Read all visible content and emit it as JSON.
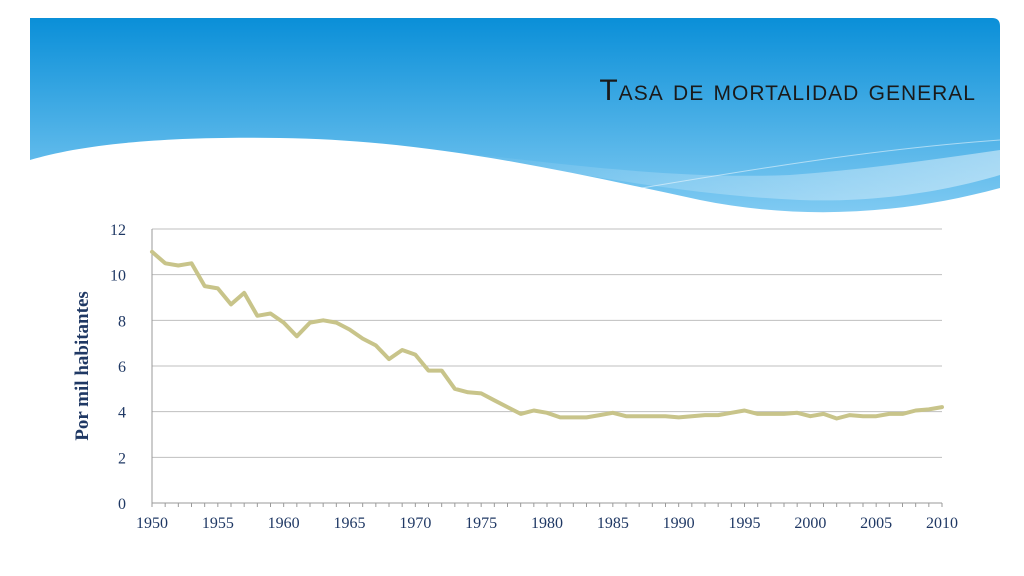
{
  "slide": {
    "title": "Tasa de mortalidad general"
  },
  "colors": {
    "banner_top": "#0a8fd8",
    "banner_bottom": "#7fcaf2",
    "line": "#c8c48a",
    "axis_text": "#1f3864",
    "grid": "#bfbfbf"
  },
  "chart_data": {
    "type": "line",
    "title": "",
    "xlabel": "",
    "ylabel": "Por mil habitantes",
    "xlim": [
      1950,
      2010
    ],
    "ylim": [
      0,
      12
    ],
    "grid": true,
    "legend": "none",
    "x_ticks": [
      "1950",
      "1955",
      "1960",
      "1965",
      "1970",
      "1975",
      "1980",
      "1985",
      "1990",
      "1995",
      "2000",
      "2005",
      "2010"
    ],
    "y_ticks": [
      "0",
      "2",
      "4",
      "6",
      "8",
      "10",
      "12"
    ],
    "series": [
      {
        "x": [
          1950,
          1951,
          1952,
          1953,
          1954,
          1955,
          1956,
          1957,
          1958,
          1959,
          1960,
          1961,
          1962,
          1963,
          1964,
          1965,
          1966,
          1967,
          1968,
          1969,
          1970,
          1971,
          1972,
          1973,
          1974,
          1975,
          1976,
          1977,
          1978,
          1979,
          1980,
          1981,
          1982,
          1983,
          1984,
          1985,
          1986,
          1987,
          1988,
          1989,
          1990,
          1991,
          1992,
          1993,
          1994,
          1995,
          1996,
          1997,
          1998,
          1999,
          2000,
          2001,
          2002,
          2003,
          2004,
          2005,
          2006,
          2007,
          2008,
          2009,
          2010
        ],
        "y": [
          11.0,
          10.5,
          10.4,
          10.5,
          9.5,
          9.4,
          8.7,
          9.2,
          8.2,
          8.3,
          7.9,
          7.3,
          7.9,
          8.0,
          7.9,
          7.6,
          7.2,
          6.9,
          6.3,
          6.7,
          6.5,
          5.8,
          5.8,
          5.0,
          4.85,
          4.8,
          4.5,
          4.2,
          3.9,
          4.05,
          3.95,
          3.75,
          3.75,
          3.75,
          3.85,
          3.95,
          3.8,
          3.8,
          3.8,
          3.8,
          3.75,
          3.8,
          3.85,
          3.85,
          3.95,
          4.05,
          3.9,
          3.9,
          3.9,
          3.95,
          3.8,
          3.9,
          3.7,
          3.85,
          3.8,
          3.8,
          3.9,
          3.9,
          4.05,
          4.1,
          4.2
        ]
      }
    ]
  }
}
